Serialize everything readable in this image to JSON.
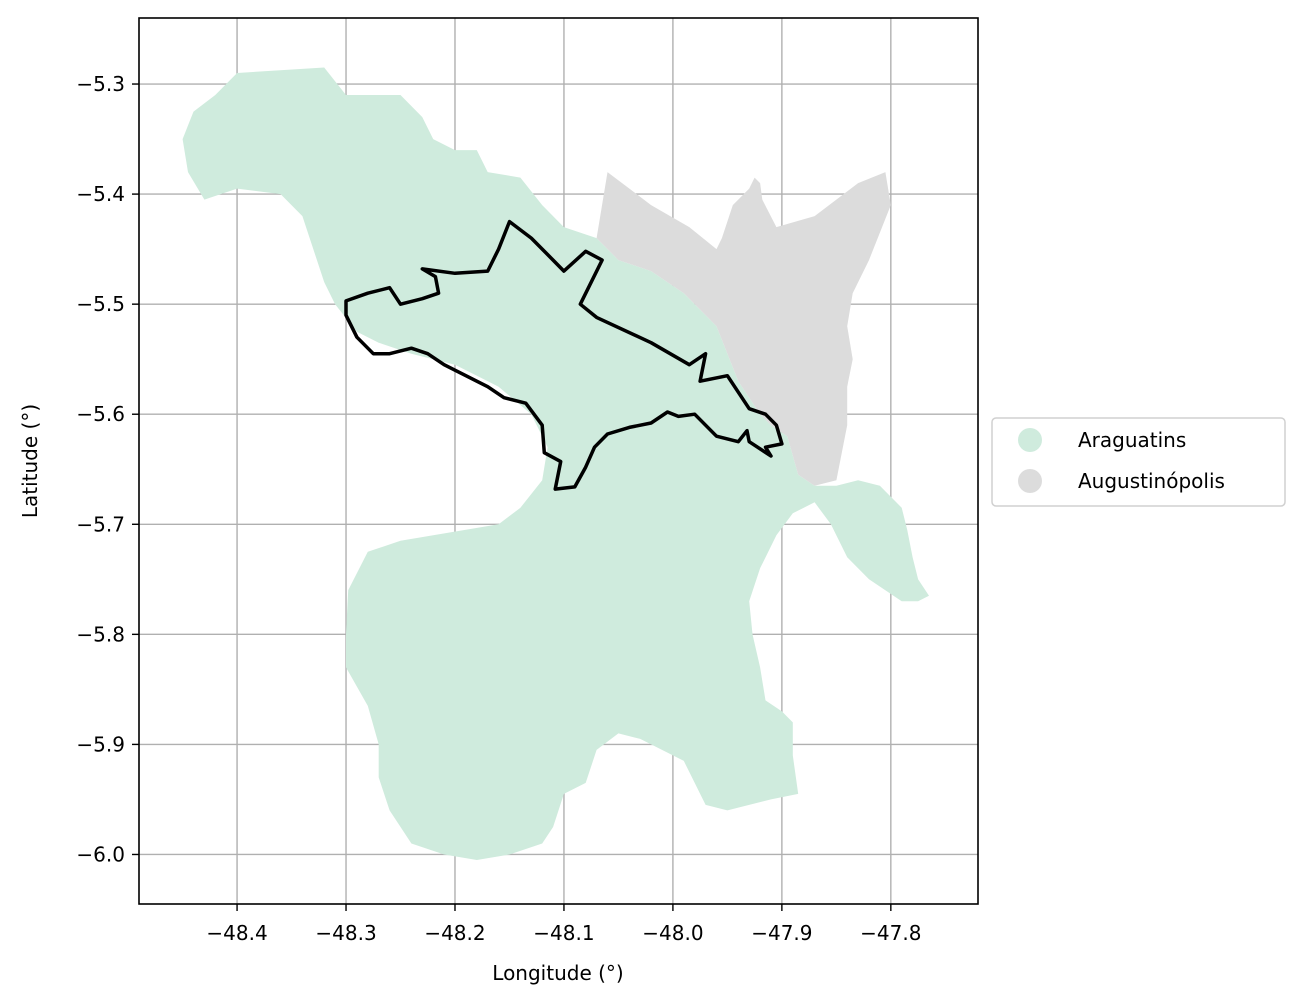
{
  "chart_data": {
    "type": "map",
    "title": "",
    "xlabel": "Longitude (°)",
    "ylabel": "Latitude (°)",
    "xlim": [
      -48.49,
      -47.72
    ],
    "ylim": [
      -6.045,
      -5.24
    ],
    "x_ticks": [
      -48.4,
      -48.3,
      -48.2,
      -48.1,
      -48.0,
      -47.9,
      -47.8
    ],
    "x_tick_labels": [
      "−48.4",
      "−48.3",
      "−48.2",
      "−48.1",
      "−48.0",
      "−47.9",
      "−47.8"
    ],
    "y_ticks": [
      -5.3,
      -5.4,
      -5.5,
      -5.6,
      -5.7,
      -5.8,
      -5.9,
      -6.0
    ],
    "y_tick_labels": [
      "−5.3",
      "−5.4",
      "−5.5",
      "−5.6",
      "−5.7",
      "−5.8",
      "−5.9",
      "−6.0"
    ],
    "grid": true,
    "legend_position": "right",
    "legend": [
      {
        "name": "Araguatins",
        "color": "#cfebdd"
      },
      {
        "name": "Augustinópolis",
        "color": "#dcdcdc"
      }
    ],
    "regions": [
      {
        "name": "Araguatins",
        "color": "#cfebdd",
        "coords": [
          [
            -48.4,
            -5.29
          ],
          [
            -48.32,
            -5.285
          ],
          [
            -48.3,
            -5.31
          ],
          [
            -48.25,
            -5.31
          ],
          [
            -48.23,
            -5.33
          ],
          [
            -48.22,
            -5.35
          ],
          [
            -48.2,
            -5.36
          ],
          [
            -48.18,
            -5.36
          ],
          [
            -48.17,
            -5.38
          ],
          [
            -48.14,
            -5.385
          ],
          [
            -48.12,
            -5.41
          ],
          [
            -48.1,
            -5.43
          ],
          [
            -48.07,
            -5.44
          ],
          [
            -48.05,
            -5.46
          ],
          [
            -48.02,
            -5.47
          ],
          [
            -47.99,
            -5.49
          ],
          [
            -47.96,
            -5.52
          ],
          [
            -47.95,
            -5.545
          ],
          [
            -47.94,
            -5.57
          ],
          [
            -47.93,
            -5.585
          ],
          [
            -47.92,
            -5.6
          ],
          [
            -47.91,
            -5.61
          ],
          [
            -47.895,
            -5.62
          ],
          [
            -47.885,
            -5.655
          ],
          [
            -47.87,
            -5.665
          ],
          [
            -47.85,
            -5.665
          ],
          [
            -47.83,
            -5.66
          ],
          [
            -47.81,
            -5.665
          ],
          [
            -47.8,
            -5.675
          ],
          [
            -47.79,
            -5.685
          ],
          [
            -47.785,
            -5.705
          ],
          [
            -47.78,
            -5.73
          ],
          [
            -47.775,
            -5.75
          ],
          [
            -47.765,
            -5.765
          ],
          [
            -47.775,
            -5.77
          ],
          [
            -47.79,
            -5.77
          ],
          [
            -47.82,
            -5.75
          ],
          [
            -47.84,
            -5.73
          ],
          [
            -47.855,
            -5.7
          ],
          [
            -47.87,
            -5.68
          ],
          [
            -47.89,
            -5.69
          ],
          [
            -47.905,
            -5.71
          ],
          [
            -47.92,
            -5.74
          ],
          [
            -47.93,
            -5.77
          ],
          [
            -47.927,
            -5.8
          ],
          [
            -47.92,
            -5.83
          ],
          [
            -47.915,
            -5.86
          ],
          [
            -47.9,
            -5.87
          ],
          [
            -47.89,
            -5.88
          ],
          [
            -47.89,
            -5.91
          ],
          [
            -47.885,
            -5.945
          ],
          [
            -47.91,
            -5.95
          ],
          [
            -47.95,
            -5.96
          ],
          [
            -47.97,
            -5.955
          ],
          [
            -47.98,
            -5.935
          ],
          [
            -47.99,
            -5.915
          ],
          [
            -48.01,
            -5.905
          ],
          [
            -48.03,
            -5.895
          ],
          [
            -48.05,
            -5.89
          ],
          [
            -48.07,
            -5.905
          ],
          [
            -48.08,
            -5.935
          ],
          [
            -48.1,
            -5.945
          ],
          [
            -48.11,
            -5.975
          ],
          [
            -48.12,
            -5.99
          ],
          [
            -48.15,
            -6.0
          ],
          [
            -48.18,
            -6.005
          ],
          [
            -48.21,
            -6.0
          ],
          [
            -48.24,
            -5.99
          ],
          [
            -48.26,
            -5.96
          ],
          [
            -48.27,
            -5.93
          ],
          [
            -48.27,
            -5.9
          ],
          [
            -48.28,
            -5.865
          ],
          [
            -48.3,
            -5.83
          ],
          [
            -48.3,
            -5.8
          ],
          [
            -48.298,
            -5.76
          ],
          [
            -48.28,
            -5.725
          ],
          [
            -48.25,
            -5.715
          ],
          [
            -48.22,
            -5.71
          ],
          [
            -48.19,
            -5.705
          ],
          [
            -48.16,
            -5.7
          ],
          [
            -48.14,
            -5.685
          ],
          [
            -48.12,
            -5.66
          ],
          [
            -48.115,
            -5.63
          ],
          [
            -48.13,
            -5.6
          ],
          [
            -48.16,
            -5.575
          ],
          [
            -48.2,
            -5.555
          ],
          [
            -48.24,
            -5.545
          ],
          [
            -48.27,
            -5.535
          ],
          [
            -48.29,
            -5.525
          ],
          [
            -48.31,
            -5.5
          ],
          [
            -48.32,
            -5.48
          ],
          [
            -48.33,
            -5.45
          ],
          [
            -48.34,
            -5.42
          ],
          [
            -48.36,
            -5.4
          ],
          [
            -48.4,
            -5.395
          ],
          [
            -48.43,
            -5.405
          ],
          [
            -48.445,
            -5.38
          ],
          [
            -48.45,
            -5.35
          ],
          [
            -48.44,
            -5.325
          ],
          [
            -48.42,
            -5.31
          ],
          [
            -48.41,
            -5.3
          ]
        ]
      },
      {
        "name": "Augustinópolis",
        "color": "#dcdcdc",
        "coords": [
          [
            -48.06,
            -5.38
          ],
          [
            -48.02,
            -5.41
          ],
          [
            -47.985,
            -5.43
          ],
          [
            -47.96,
            -5.45
          ],
          [
            -47.955,
            -5.44
          ],
          [
            -47.945,
            -5.41
          ],
          [
            -47.93,
            -5.395
          ],
          [
            -47.925,
            -5.385
          ],
          [
            -47.92,
            -5.39
          ],
          [
            -47.918,
            -5.405
          ],
          [
            -47.905,
            -5.43
          ],
          [
            -47.87,
            -5.42
          ],
          [
            -47.83,
            -5.39
          ],
          [
            -47.805,
            -5.38
          ],
          [
            -47.8,
            -5.41
          ],
          [
            -47.81,
            -5.435
          ],
          [
            -47.82,
            -5.46
          ],
          [
            -47.835,
            -5.49
          ],
          [
            -47.84,
            -5.52
          ],
          [
            -47.835,
            -5.55
          ],
          [
            -47.84,
            -5.575
          ],
          [
            -47.84,
            -5.61
          ],
          [
            -47.845,
            -5.635
          ],
          [
            -47.85,
            -5.66
          ],
          [
            -47.87,
            -5.665
          ],
          [
            -47.885,
            -5.655
          ],
          [
            -47.895,
            -5.62
          ],
          [
            -47.91,
            -5.61
          ],
          [
            -47.92,
            -5.6
          ],
          [
            -47.93,
            -5.585
          ],
          [
            -47.94,
            -5.57
          ],
          [
            -47.95,
            -5.545
          ],
          [
            -47.96,
            -5.52
          ],
          [
            -47.99,
            -5.49
          ],
          [
            -48.02,
            -5.47
          ],
          [
            -48.05,
            -5.46
          ],
          [
            -48.07,
            -5.44
          ]
        ]
      }
    ],
    "outline": {
      "color": "#000000",
      "coords": [
        [
          -48.15,
          -5.425
        ],
        [
          -48.13,
          -5.44
        ],
        [
          -48.11,
          -5.46
        ],
        [
          -48.1,
          -5.47
        ],
        [
          -48.08,
          -5.452
        ],
        [
          -48.065,
          -5.46
        ],
        [
          -48.085,
          -5.5
        ],
        [
          -48.07,
          -5.512
        ],
        [
          -48.02,
          -5.535
        ],
        [
          -47.985,
          -5.555
        ],
        [
          -47.97,
          -5.545
        ],
        [
          -47.975,
          -5.57
        ],
        [
          -47.95,
          -5.565
        ],
        [
          -47.94,
          -5.58
        ],
        [
          -47.93,
          -5.595
        ],
        [
          -47.915,
          -5.6
        ],
        [
          -47.905,
          -5.61
        ],
        [
          -47.9,
          -5.627
        ],
        [
          -47.915,
          -5.63
        ],
        [
          -47.91,
          -5.638
        ],
        [
          -47.93,
          -5.625
        ],
        [
          -47.932,
          -5.615
        ],
        [
          -47.94,
          -5.625
        ],
        [
          -47.96,
          -5.62
        ],
        [
          -47.97,
          -5.61
        ],
        [
          -47.98,
          -5.6
        ],
        [
          -47.995,
          -5.602
        ],
        [
          -48.005,
          -5.598
        ],
        [
          -48.02,
          -5.608
        ],
        [
          -48.04,
          -5.612
        ],
        [
          -48.06,
          -5.618
        ],
        [
          -48.072,
          -5.63
        ],
        [
          -48.08,
          -5.648
        ],
        [
          -48.09,
          -5.666
        ],
        [
          -48.108,
          -5.668
        ],
        [
          -48.103,
          -5.643
        ],
        [
          -48.118,
          -5.635
        ],
        [
          -48.12,
          -5.61
        ],
        [
          -48.135,
          -5.59
        ],
        [
          -48.155,
          -5.585
        ],
        [
          -48.17,
          -5.575
        ],
        [
          -48.19,
          -5.565
        ],
        [
          -48.21,
          -5.555
        ],
        [
          -48.225,
          -5.545
        ],
        [
          -48.24,
          -5.54
        ],
        [
          -48.26,
          -5.545
        ],
        [
          -48.275,
          -5.545
        ],
        [
          -48.29,
          -5.53
        ],
        [
          -48.3,
          -5.51
        ],
        [
          -48.3,
          -5.497
        ],
        [
          -48.28,
          -5.49
        ],
        [
          -48.26,
          -5.485
        ],
        [
          -48.25,
          -5.5
        ],
        [
          -48.23,
          -5.495
        ],
        [
          -48.215,
          -5.49
        ],
        [
          -48.218,
          -5.475
        ],
        [
          -48.23,
          -5.468
        ],
        [
          -48.2,
          -5.472
        ],
        [
          -48.17,
          -5.47
        ],
        [
          -48.16,
          -5.45
        ]
      ]
    }
  }
}
